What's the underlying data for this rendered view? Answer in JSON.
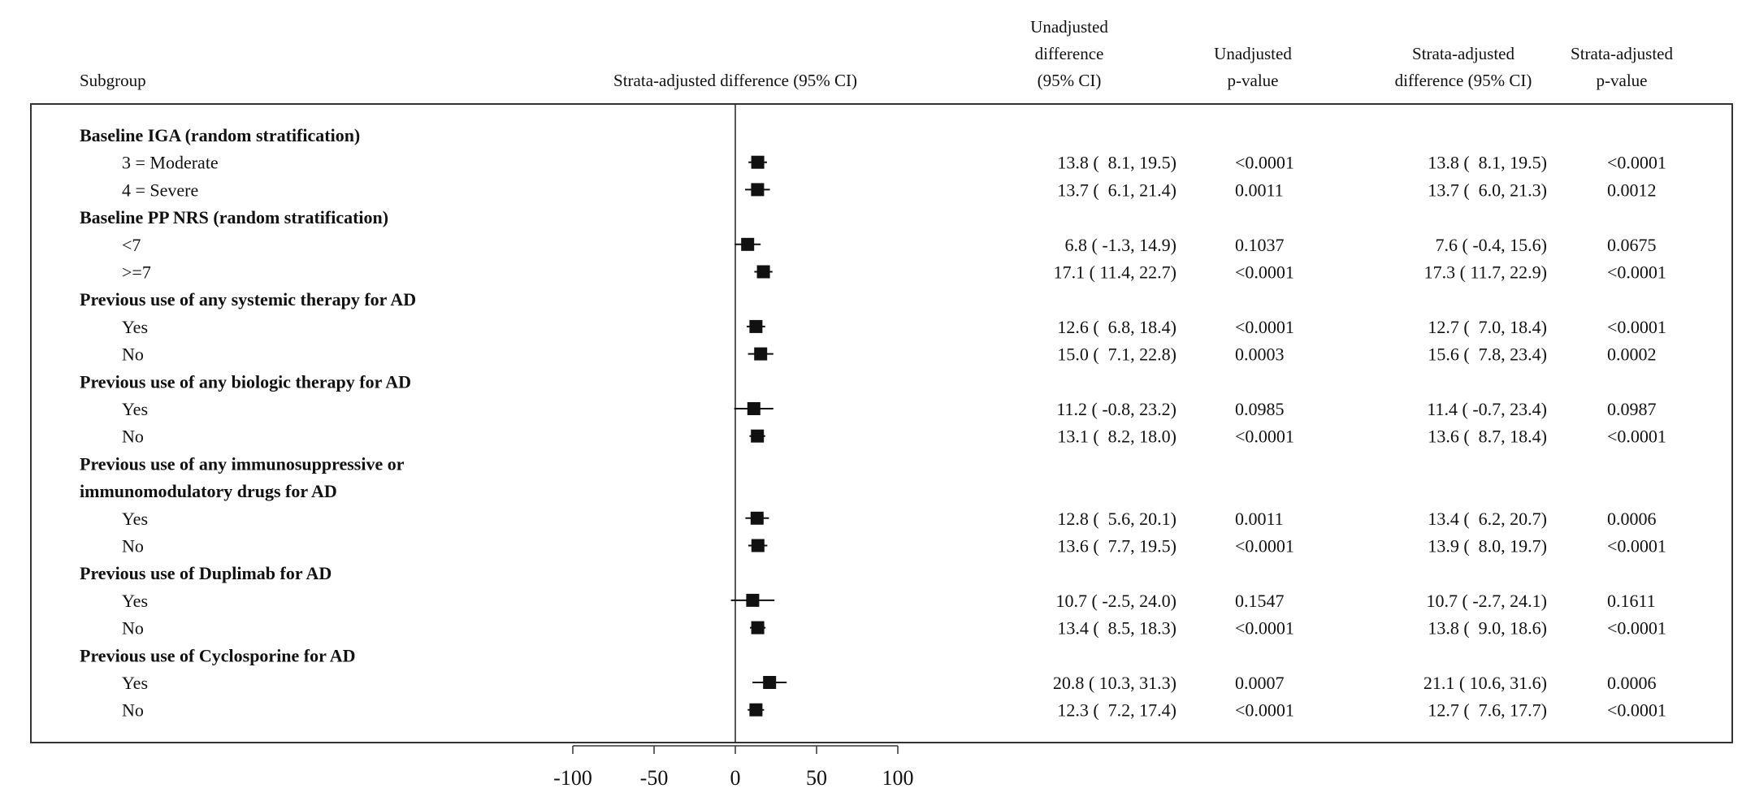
{
  "headers": {
    "subgroup": "Subgroup",
    "plot": "Strata-adjusted difference (95% CI)",
    "unadj_diff": [
      "Unadjusted",
      "difference",
      "(95% CI)"
    ],
    "unadj_p": [
      "Unadjusted",
      "p-value"
    ],
    "adj_diff": [
      "Strata-adjusted",
      "difference (95% CI)"
    ],
    "adj_p": [
      "Strata-adjusted",
      "p-value"
    ]
  },
  "chart_data": {
    "type": "forest",
    "xlim": [
      -100,
      100
    ],
    "xticks": [
      -100,
      -50,
      0,
      50,
      100
    ],
    "reference_line": 0,
    "rows": [
      {
        "kind": "group",
        "label": "Baseline IGA (random stratification)"
      },
      {
        "kind": "item",
        "label": "3 = Moderate",
        "unadj": "13.8 (  8.1, 19.5)",
        "unadj_p": "<0.0001",
        "adj": "13.8 (  8.1, 19.5)",
        "adj_p": "<0.0001",
        "est": 13.8,
        "lo": 8.1,
        "hi": 19.5
      },
      {
        "kind": "item",
        "label": "4 = Severe",
        "unadj": "13.7 (  6.1, 21.4)",
        "unadj_p": "0.0011",
        "adj": "13.7 (  6.0, 21.3)",
        "adj_p": "0.0012",
        "est": 13.7,
        "lo": 6.0,
        "hi": 21.3
      },
      {
        "kind": "group",
        "label": "Baseline PP NRS (random stratification)"
      },
      {
        "kind": "item",
        "label": "<7",
        "unadj": "6.8 ( -1.3, 14.9)",
        "unadj_p": "0.1037",
        "adj": "7.6 ( -0.4, 15.6)",
        "adj_p": "0.0675",
        "est": 7.6,
        "lo": -0.4,
        "hi": 15.6
      },
      {
        "kind": "item",
        "label": ">=7",
        "unadj": "17.1 ( 11.4, 22.7)",
        "unadj_p": "<0.0001",
        "adj": "17.3 ( 11.7, 22.9)",
        "adj_p": "<0.0001",
        "est": 17.3,
        "lo": 11.7,
        "hi": 22.9
      },
      {
        "kind": "group",
        "label": "Previous use of any systemic therapy for AD"
      },
      {
        "kind": "item",
        "label": "Yes",
        "unadj": "12.6 (  6.8, 18.4)",
        "unadj_p": "<0.0001",
        "adj": "12.7 (  7.0, 18.4)",
        "adj_p": "<0.0001",
        "est": 12.7,
        "lo": 7.0,
        "hi": 18.4
      },
      {
        "kind": "item",
        "label": "No",
        "unadj": "15.0 (  7.1, 22.8)",
        "unadj_p": "0.0003",
        "adj": "15.6 (  7.8, 23.4)",
        "adj_p": "0.0002",
        "est": 15.6,
        "lo": 7.8,
        "hi": 23.4
      },
      {
        "kind": "group",
        "label": "Previous use of any biologic therapy for AD"
      },
      {
        "kind": "item",
        "label": "Yes",
        "unadj": "11.2 ( -0.8, 23.2)",
        "unadj_p": "0.0985",
        "adj": "11.4 ( -0.7, 23.4)",
        "adj_p": "0.0987",
        "est": 11.4,
        "lo": -0.7,
        "hi": 23.4
      },
      {
        "kind": "item",
        "label": "No",
        "unadj": "13.1 (  8.2, 18.0)",
        "unadj_p": "<0.0001",
        "adj": "13.6 (  8.7, 18.4)",
        "adj_p": "<0.0001",
        "est": 13.6,
        "lo": 8.7,
        "hi": 18.4
      },
      {
        "kind": "group",
        "label": "Previous use of any immunosuppressive or"
      },
      {
        "kind": "group",
        "label": "immunomodulatory drugs for AD"
      },
      {
        "kind": "item",
        "label": "Yes",
        "unadj": "12.8 (  5.6, 20.1)",
        "unadj_p": "0.0011",
        "adj": "13.4 (  6.2, 20.7)",
        "adj_p": "0.0006",
        "est": 13.4,
        "lo": 6.2,
        "hi": 20.7
      },
      {
        "kind": "item",
        "label": "No",
        "unadj": "13.6 (  7.7, 19.5)",
        "unadj_p": "<0.0001",
        "adj": "13.9 (  8.0, 19.7)",
        "adj_p": "<0.0001",
        "est": 13.9,
        "lo": 8.0,
        "hi": 19.7
      },
      {
        "kind": "group",
        "label": "Previous use of Duplimab for AD"
      },
      {
        "kind": "item",
        "label": "Yes",
        "unadj": "10.7 ( -2.5, 24.0)",
        "unadj_p": "0.1547",
        "adj": "10.7 ( -2.7, 24.1)",
        "adj_p": "0.1611",
        "est": 10.7,
        "lo": -2.7,
        "hi": 24.1
      },
      {
        "kind": "item",
        "label": "No",
        "unadj": "13.4 (  8.5, 18.3)",
        "unadj_p": "<0.0001",
        "adj": "13.8 (  9.0, 18.6)",
        "adj_p": "<0.0001",
        "est": 13.8,
        "lo": 9.0,
        "hi": 18.6
      },
      {
        "kind": "group",
        "label": "Previous use of Cyclosporine for AD"
      },
      {
        "kind": "item",
        "label": "Yes",
        "unadj": "20.8 ( 10.3, 31.3)",
        "unadj_p": "0.0007",
        "adj": "21.1 ( 10.6, 31.6)",
        "adj_p": "0.0006",
        "est": 21.1,
        "lo": 10.6,
        "hi": 31.6
      },
      {
        "kind": "item",
        "label": "No",
        "unadj": "12.3 (  7.2, 17.4)",
        "unadj_p": "<0.0001",
        "adj": "12.7 (  7.6, 17.7)",
        "adj_p": "<0.0001",
        "est": 12.7,
        "lo": 7.6,
        "hi": 17.7
      }
    ]
  }
}
